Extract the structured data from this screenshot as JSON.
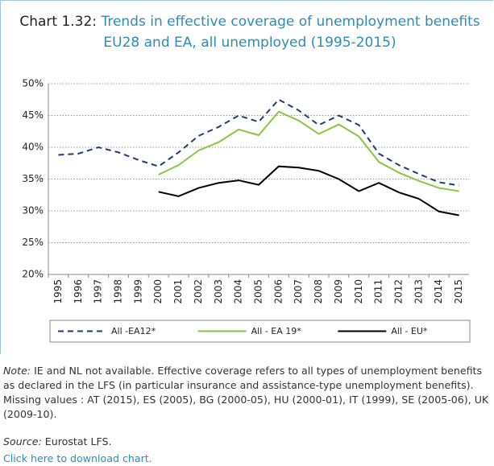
{
  "chart_data": {
    "type": "line",
    "label": "Chart 1.32:",
    "title": "Trends in effective coverage of unemployment benefits EU28 and EA, all unemployed (1995-2015)",
    "categories": [
      "1995",
      "1996",
      "1997",
      "1998",
      "1999",
      "2000",
      "2001",
      "2002",
      "2003",
      "2004",
      "2005",
      "2006",
      "2007",
      "2008",
      "2009",
      "2010",
      "2011",
      "2012",
      "2013",
      "2014",
      "2015"
    ],
    "series": [
      {
        "name": "All -EA12*",
        "color": "#1f3d6e",
        "style": "dashed",
        "values": [
          38.8,
          39,
          40,
          39.2,
          38,
          37,
          39.2,
          41.8,
          43.2,
          45,
          44,
          47.5,
          45.8,
          43.5,
          45,
          43.5,
          39,
          37.2,
          35.8,
          34.5,
          34
        ]
      },
      {
        "name": "All - EA 19*",
        "color": "#8cc63f",
        "style": "solid",
        "values": [
          null,
          null,
          null,
          null,
          null,
          35.7,
          37.2,
          39.5,
          40.8,
          42.8,
          41.9,
          45.6,
          44.2,
          42.1,
          43.6,
          41.7,
          37.7,
          36,
          34.7,
          33.6,
          33.1
        ]
      },
      {
        "name": "All - EU*",
        "color": "#000000",
        "style": "solid",
        "values": [
          null,
          null,
          null,
          null,
          null,
          33,
          32.3,
          33.6,
          34.4,
          34.8,
          34.1,
          37,
          36.8,
          36.3,
          35,
          33.1,
          34.4,
          32.9,
          31.9,
          29.9,
          29.3
        ]
      }
    ],
    "ylim": [
      20,
      50
    ],
    "yticks": [
      {
        "value": 20,
        "label": "20%"
      },
      {
        "value": 25,
        "label": "25%"
      },
      {
        "value": 30,
        "label": "30%"
      },
      {
        "value": 35,
        "label": "35%"
      },
      {
        "value": 40,
        "label": "40%"
      },
      {
        "value": 45,
        "label": "45%"
      },
      {
        "value": 50,
        "label": "50%"
      }
    ],
    "grid": true,
    "note_label": "Note:",
    "note": "IE and NL not available. Effective coverage refers to all types of unemployment benefits as declared in the LFS (in particular insurance and assistance-type unemployment benefits). Missing values : AT (2015), ES (2005), BG (2000-05), HU (2000-01), IT (1999), SE (2005-06), UK (2009-10).",
    "source_label": "Source:",
    "source": "Eurostat LFS.",
    "link": "Click here to download chart."
  }
}
